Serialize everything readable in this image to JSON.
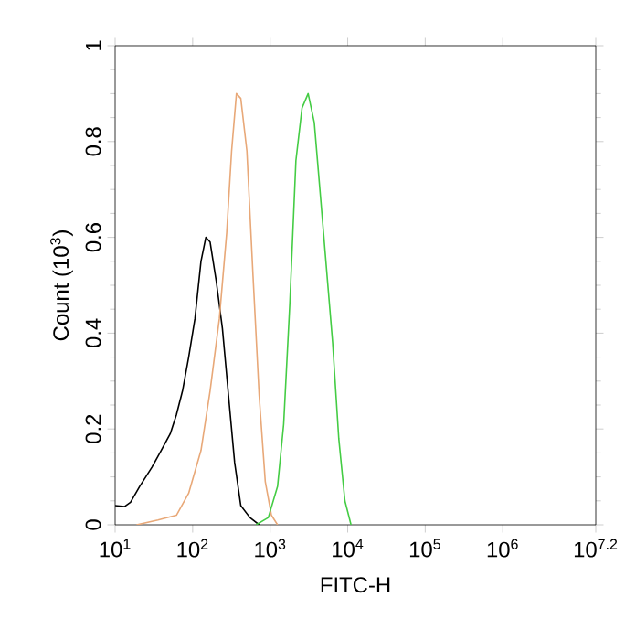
{
  "chart_data": {
    "type": "line",
    "xlabel": "FITC-H",
    "ylabel": "Count (10$^{3}$)",
    "log": "x",
    "xlim": [
      10,
      15848932
    ],
    "ylim": [
      0,
      1
    ],
    "xticks": [
      {
        "value": 10,
        "label": "10$^{1}$"
      },
      {
        "value": 100,
        "label": "10$^{2}$"
      },
      {
        "value": 1000,
        "label": "10$^{3}$"
      },
      {
        "value": 10000,
        "label": "10$^{4}$"
      },
      {
        "value": 100000,
        "label": "10$^{5}$"
      },
      {
        "value": 1000000,
        "label": "10$^{6}$"
      },
      {
        "value": 15848932,
        "label": "10$^{7.2}$"
      }
    ],
    "yticks": [
      0,
      0.2,
      0.4,
      0.6,
      0.8,
      1
    ],
    "grid": false,
    "marker": "none",
    "line_style": "solid",
    "series": [
      {
        "color": "#000000",
        "x": [
          10,
          13.2,
          15.8,
          20.7,
          29.8,
          39.2,
          51.4,
          61.8,
          74.1,
          88.9,
          107,
          128,
          148,
          168,
          201,
          242,
          290,
          348,
          418,
          548,
          721
        ],
        "values": [
          0.04,
          0.038,
          0.047,
          0.08,
          0.12,
          0.155,
          0.19,
          0.23,
          0.28,
          0.35,
          0.43,
          0.55,
          0.6,
          0.59,
          0.51,
          0.41,
          0.27,
          0.13,
          0.04,
          0.015,
          0
        ]
      },
      {
        "color": "#e8a878",
        "x": [
          18.9,
          35.7,
          61.8,
          88.9,
          128,
          168,
          221,
          275,
          318,
          367,
          418,
          501,
          601,
          721,
          865,
          1038,
          1245
        ],
        "values": [
          0,
          0.01,
          0.02,
          0.066,
          0.155,
          0.28,
          0.43,
          0.61,
          0.78,
          0.9,
          0.89,
          0.78,
          0.52,
          0.27,
          0.09,
          0.02,
          0
        ]
      },
      {
        "color": "#44cc44",
        "x": [
          658,
          946,
          1245,
          1493,
          1791,
          2148,
          2576,
          3090,
          3707,
          4875,
          6397,
          7674,
          9207,
          11040
        ],
        "values": [
          0,
          0.015,
          0.08,
          0.21,
          0.46,
          0.76,
          0.87,
          0.9,
          0.84,
          0.61,
          0.38,
          0.18,
          0.05,
          0
        ]
      }
    ]
  }
}
